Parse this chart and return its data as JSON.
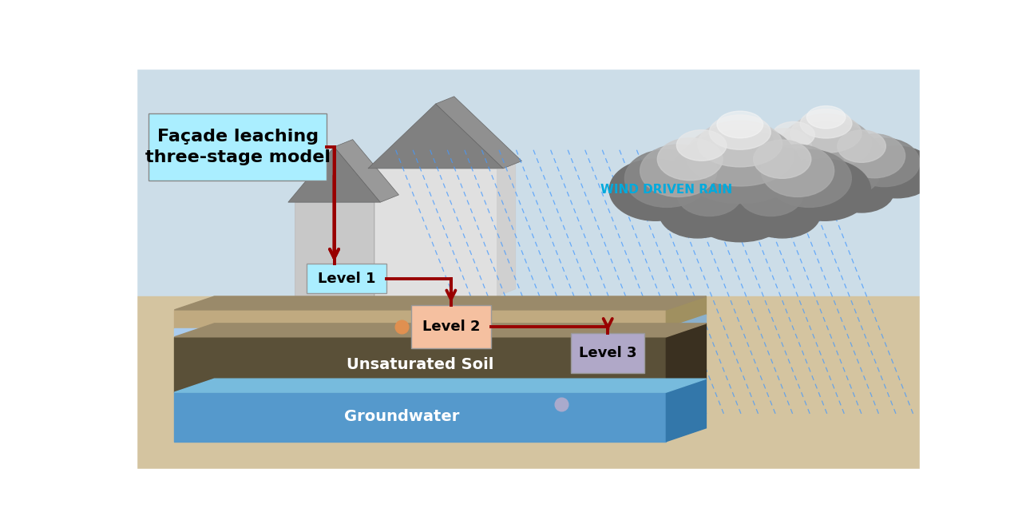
{
  "bg_sky_color": "#ccdde8",
  "bg_ground_color": "#d4c4a0",
  "title_box_color": "#aaeeff",
  "title_text": "Façade leaching\nthree-stage model",
  "wind_rain_text": "WIND DRIVEN RAIN",
  "wind_rain_color": "#00aadd",
  "level1_box_color": "#aaeeff",
  "level1_text": "Level 1",
  "level2_box_color": "#f5c0a0",
  "level2_text": "Level 2",
  "level3_box_color": "#b0a8c8",
  "level3_text": "Level 3",
  "arrow_color": "#990000",
  "unsaturated_soil_color": "#5a5038",
  "unsaturated_soil_top_color": "#9a8a6a",
  "groundwater_color": "#5599cc",
  "groundwater_text": "Groundwater",
  "unsaturated_text": "Unsaturated Soil",
  "house_left_wall": "#c8c8c8",
  "house_left_side": "#b8b8b8",
  "house_right_wall": "#e0e0e0",
  "house_right_side": "#d0d0d0",
  "house_left_roof": "#808080",
  "house_right_roof": "#909090",
  "rain_color": "#4499ff",
  "dot_orange": "#e09050",
  "dot_gray": "#aaaacc",
  "sandy_top_color": "#b0a080",
  "gw_side_color": "#4488bb",
  "lb_color": "#aaccee"
}
